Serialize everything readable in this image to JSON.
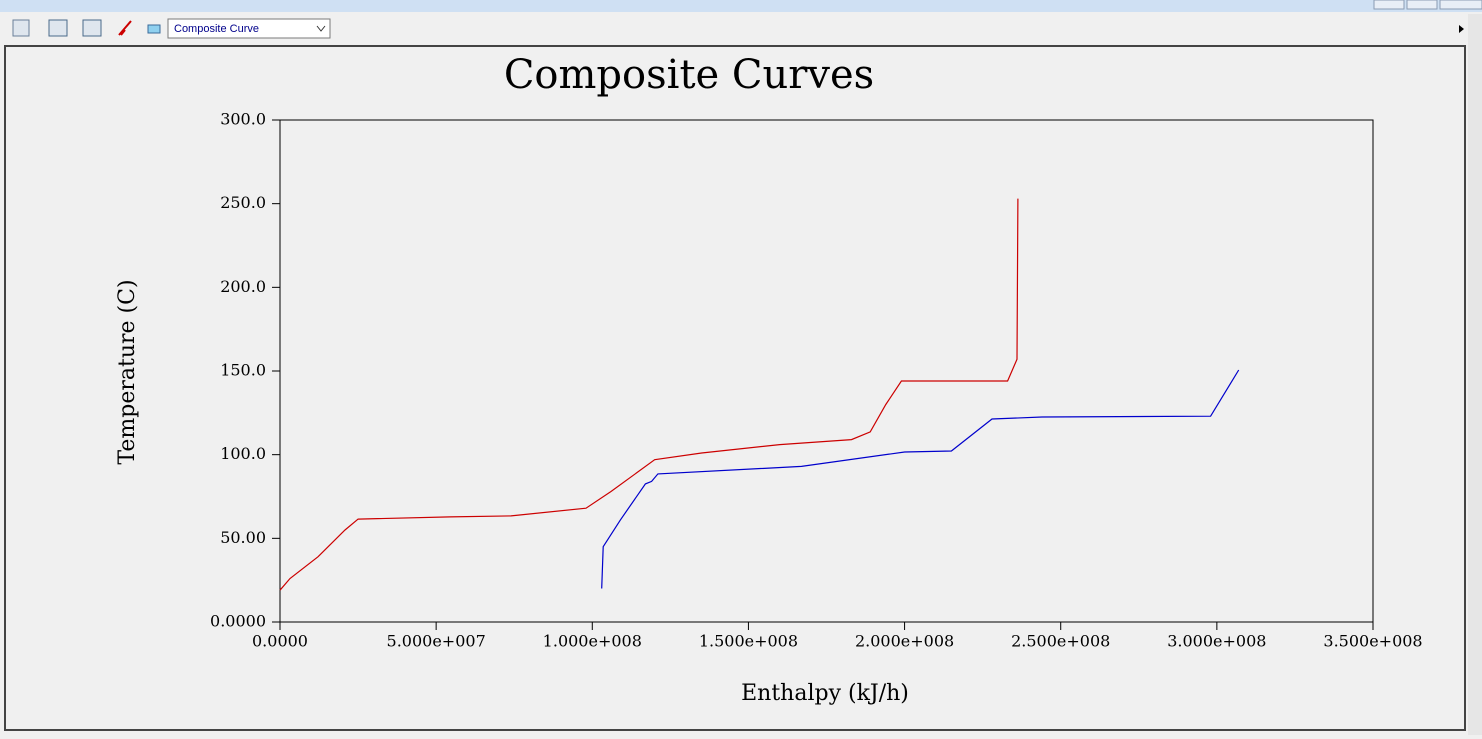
{
  "toolbar": {
    "dropdown": "Composite Curve"
  },
  "chart_data": {
    "type": "line",
    "title": "Composite Curves",
    "x_label": "Enthalpy (kJ/h)",
    "y_label": "Temperature (C)",
    "xlim": [
      0,
      350000000
    ],
    "ylim": [
      0,
      300
    ],
    "xticks": [
      {
        "value": 0,
        "label": "0.0000"
      },
      {
        "value": 50000000,
        "label": "5.000e+007"
      },
      {
        "value": 100000000,
        "label": "1.000e+008"
      },
      {
        "value": 150000000,
        "label": "1.500e+008"
      },
      {
        "value": 200000000,
        "label": "2.000e+008"
      },
      {
        "value": 250000000,
        "label": "2.500e+008"
      },
      {
        "value": 300000000,
        "label": "3.000e+008"
      },
      {
        "value": 350000000,
        "label": "3.500e+008"
      }
    ],
    "yticks": [
      {
        "value": 0,
        "label": "0.0000"
      },
      {
        "value": 50,
        "label": "50.00"
      },
      {
        "value": 100,
        "label": "100.0"
      },
      {
        "value": 150,
        "label": "150.0"
      },
      {
        "value": 200,
        "label": "200.0"
      },
      {
        "value": 250,
        "label": "250.0"
      },
      {
        "value": 300,
        "label": "300.0"
      }
    ],
    "series": [
      {
        "color": "#cc0000",
        "x": [
          0,
          3200000,
          12200000,
          20800000,
          25000000,
          54500000,
          74000000,
          98000000,
          106000000,
          120000000,
          135000000,
          160000000,
          183000000,
          189000000,
          194000000,
          199000000,
          233000000,
          236000000,
          236300000
        ],
        "values": [
          19,
          26,
          39,
          55,
          61.5,
          62.8,
          63.4,
          68,
          78,
          97,
          101,
          106,
          109,
          113.6,
          130,
          144,
          144,
          157,
          253
        ]
      },
      {
        "color": "#0000cc",
        "x": [
          103000000,
          103500000,
          109000000,
          117000000,
          119000000,
          121000000,
          167000000,
          200000000,
          215000000,
          228000000,
          244000000,
          298000000,
          307000000
        ],
        "values": [
          20,
          45,
          61,
          82.5,
          84,
          88.5,
          93,
          101.6,
          102.2,
          121.3,
          122.5,
          123,
          150.6
        ]
      }
    ]
  }
}
